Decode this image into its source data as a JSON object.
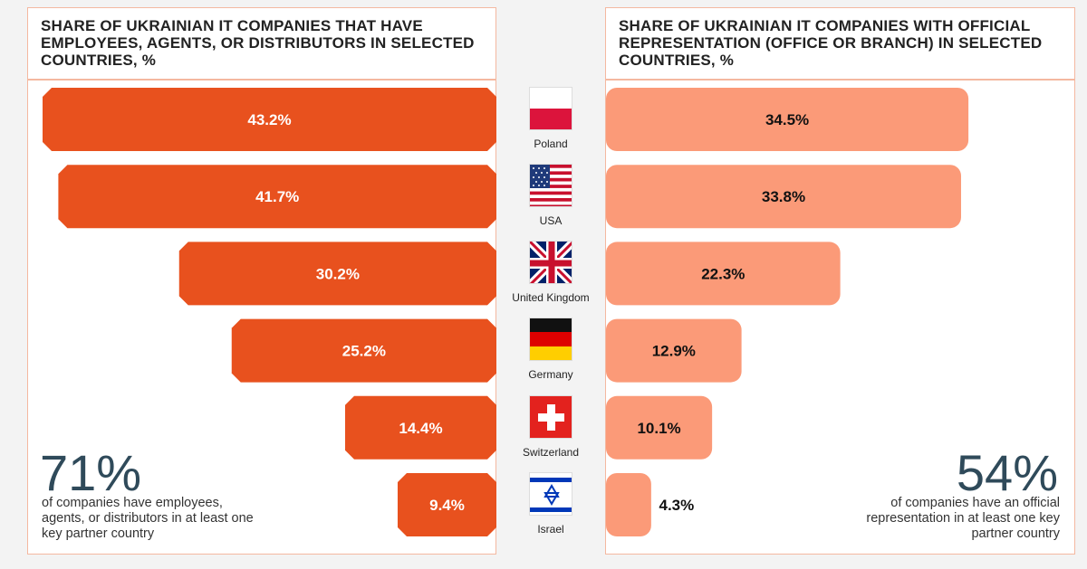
{
  "left_title": "SHARE OF UKRAINIAN IT COMPANIES THAT HAVE EMPLOYEES, AGENTS, OR DISTRIBUTORS IN SELECTED COUNTRIES, %",
  "right_title": "SHARE OF UKRAINIAN IT COMPANIES WITH OFFICIAL REPRESENTATION (OFFICE OR BRANCH) IN SELECTED COUNTRIES, %",
  "left_stat": {
    "value": "71%",
    "text": "of companies have employees, agents, or distributors in at least one key partner country"
  },
  "right_stat": {
    "value": "54%",
    "text": "of companies have an official representation in at least one key partner country"
  },
  "colors": {
    "left_bar": "#e8511e",
    "right_bar": "#fb9a78",
    "frame": "#f4b8a0",
    "stat": "#2f4a5a"
  },
  "chart_data": [
    {
      "type": "bar",
      "title": "SHARE OF UKRAINIAN IT COMPANIES THAT HAVE EMPLOYEES, AGENTS, OR DISTRIBUTORS IN SELECTED COUNTRIES, %",
      "categories": [
        "Poland",
        "USA",
        "United Kingdom",
        "Germany",
        "Switzerland",
        "Israel"
      ],
      "values": [
        43.2,
        41.7,
        30.2,
        25.2,
        14.4,
        9.4
      ],
      "labels": [
        "43.2%",
        "41.7%",
        "30.2%",
        "25.2%",
        "14.4%",
        "9.4%"
      ],
      "orientation": "horizontal-right-aligned"
    },
    {
      "type": "bar",
      "title": "SHARE OF UKRAINIAN IT COMPANIES WITH OFFICIAL REPRESENTATION (OFFICE OR BRANCH) IN SELECTED COUNTRIES, %",
      "categories": [
        "Poland",
        "USA",
        "United Kingdom",
        "Germany",
        "Switzerland",
        "Israel"
      ],
      "values": [
        34.5,
        33.8,
        22.3,
        12.9,
        10.1,
        4.3
      ],
      "labels": [
        "34.5%",
        "33.8%",
        "22.3%",
        "12.9%",
        "10.1%",
        "4.3%"
      ],
      "orientation": "horizontal-left-aligned"
    }
  ],
  "countries": [
    {
      "name": "Poland",
      "flag": "poland-flag"
    },
    {
      "name": "USA",
      "flag": "usa-flag"
    },
    {
      "name": "United Kingdom",
      "flag": "uk-flag"
    },
    {
      "name": "Germany",
      "flag": "germany-flag"
    },
    {
      "name": "Switzerland",
      "flag": "switzerland-flag"
    },
    {
      "name": "Israel",
      "flag": "israel-flag"
    }
  ]
}
